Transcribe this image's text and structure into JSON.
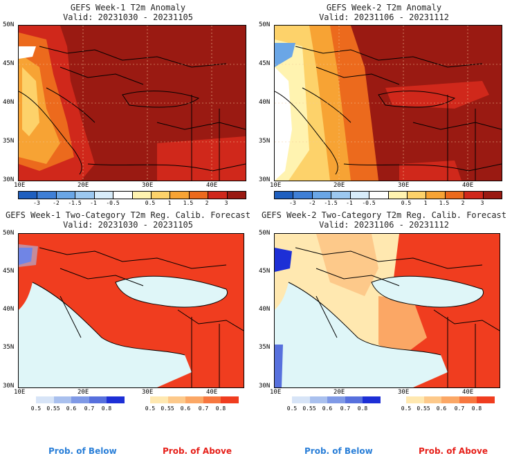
{
  "panels": {
    "tl": {
      "title1": "GEFS Week-1 T2m Anomaly",
      "title2": "Valid: 20231030 - 20231105"
    },
    "tr": {
      "title1": "GEFS Week-2 T2m Anomaly",
      "title2": "Valid: 20231106 - 20231112"
    },
    "bl": {
      "title1": "GEFS Week-1 Two-Category T2m Reg. Calib. Forecast",
      "title2": "Valid: 20231030 - 20231105"
    },
    "br": {
      "title1": "GEFS Week-2 Two-Category T2m Reg. Calib. Forecast",
      "title2": "Valid: 20231106 - 20231112"
    }
  },
  "axes": {
    "lat_labels": [
      "50N",
      "45N",
      "40N",
      "35N",
      "30N"
    ],
    "lon_labels": [
      "10E",
      "20E",
      "30E",
      "40E"
    ]
  },
  "anomaly_colorbar": {
    "labels": [
      "-3",
      "-2",
      "-1.5",
      "-1",
      "-0.5",
      "0.5",
      "1",
      "1.5",
      "2",
      "3"
    ],
    "colors": [
      "#1f5fbf",
      "#3f7fd6",
      "#6aa6e6",
      "#9cc8f0",
      "#d8ecfa",
      "#ffffff",
      "#fff3b0",
      "#fdd26a",
      "#f7a334",
      "#ec6a1d",
      "#d0281b",
      "#9a1a12"
    ]
  },
  "prob_colorbars": {
    "below_labels": [
      "0.5",
      "0.55",
      "0.6",
      "0.7",
      "0.8"
    ],
    "below_colors": [
      "#d7e4f7",
      "#a9c0ee",
      "#7f99e6",
      "#5770dd",
      "#1d2fd6"
    ],
    "above_labels": [
      "0.5",
      "0.55",
      "0.6",
      "0.7",
      "0.8"
    ],
    "above_colors": [
      "#ffe8b0",
      "#fdc98a",
      "#fba765",
      "#f7773f",
      "#f03d1f"
    ],
    "below_title": "Prob. of Below",
    "above_title": "Prob. of Above",
    "below_color": "#2a7fd8",
    "above_color": "#e6201a"
  },
  "map_colors": {
    "sea_light": "#dff6f8",
    "anom_dark": "#9a1a12",
    "anom_mid": "#d0281b",
    "anom_orange": "#ec6a1d",
    "anom_light": "#f7a334",
    "anom_yellow": "#fdd26a",
    "prob_red": "#f03d1f",
    "prob_peach": "#fdc98a",
    "prob_light": "#ffe8b0"
  }
}
